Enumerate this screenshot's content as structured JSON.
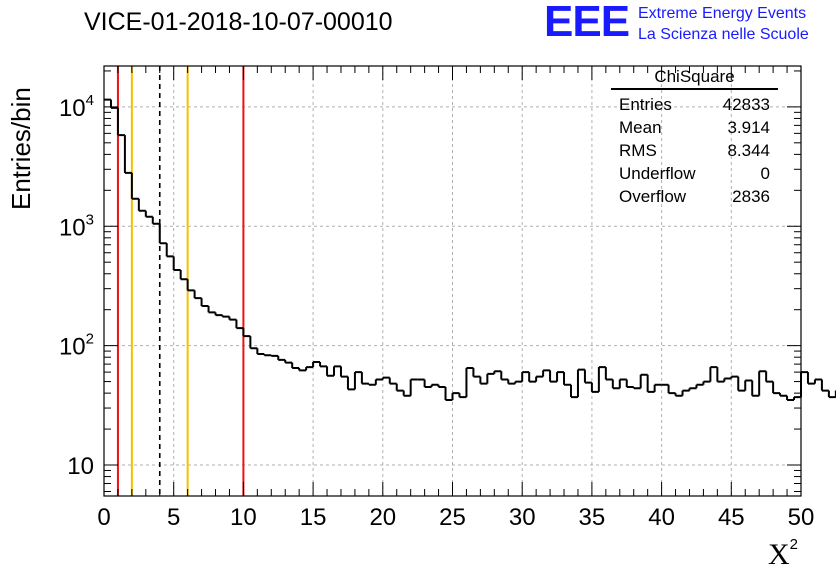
{
  "chart_data": {
    "type": "histogram",
    "title": "VICE-01-2018-10-07-00010",
    "xlabel": "X",
    "xlabel_superscript": "2",
    "ylabel": "Entries/bin",
    "xlim": [
      0,
      50
    ],
    "ylim": [
      5.5,
      22000
    ],
    "yscale": "log",
    "bin_width": 0.5,
    "x_ticks": [
      0,
      5,
      10,
      15,
      20,
      25,
      30,
      35,
      40,
      45,
      50
    ],
    "y_ticks": [
      {
        "value": 10,
        "base": "10",
        "exp": ""
      },
      {
        "value": 100,
        "base": "10",
        "exp": "2"
      },
      {
        "value": 1000,
        "base": "10",
        "exp": "3"
      },
      {
        "value": 10000,
        "base": "10",
        "exp": "4"
      }
    ],
    "grid": true,
    "bin_contents": [
      11500,
      9800,
      5800,
      2800,
      1700,
      1350,
      1200,
      1050,
      720,
      560,
      430,
      360,
      290,
      250,
      215,
      190,
      180,
      175,
      165,
      140,
      120,
      95,
      85,
      83,
      82,
      76,
      72,
      65,
      62,
      66,
      73,
      67,
      56,
      67,
      55,
      43,
      60,
      48,
      47,
      52,
      54,
      48,
      42,
      38,
      52,
      52,
      45,
      47,
      45,
      35,
      40,
      37,
      65,
      55,
      48,
      58,
      61,
      52,
      48,
      50,
      60,
      50,
      55,
      62,
      50,
      60,
      47,
      37,
      63,
      49,
      41,
      66,
      52,
      44,
      52,
      45,
      44,
      57,
      41,
      47,
      47,
      40,
      38,
      42,
      44,
      47,
      50,
      66,
      50,
      53,
      55,
      42,
      51,
      38,
      61,
      50,
      40,
      38,
      35,
      37,
      60,
      48,
      52,
      42,
      37,
      42,
      42,
      32,
      35,
      43,
      32,
      30,
      65,
      42,
      32,
      41,
      40,
      33,
      37,
      35,
      36,
      35,
      32,
      38,
      31,
      32,
      35,
      32,
      29,
      23,
      22,
      12,
      31,
      16,
      31,
      28,
      22,
      20,
      25,
      22
    ],
    "vertical_lines": [
      {
        "x": 1,
        "color": "#ee1111",
        "style": "solid"
      },
      {
        "x": 2,
        "color": "#f5c000",
        "style": "solid"
      },
      {
        "x": 4,
        "color": "#000000",
        "style": "dashed"
      },
      {
        "x": 6,
        "color": "#f5c000",
        "style": "solid"
      },
      {
        "x": 10,
        "color": "#ee1111",
        "style": "solid"
      }
    ],
    "stats": {
      "title": "ChiSquare",
      "rows": [
        {
          "label": "Entries",
          "value": "42833"
        },
        {
          "label": "Mean",
          "value": "3.914"
        },
        {
          "label": "RMS",
          "value": "8.344"
        },
        {
          "label": "Underflow",
          "value": "0"
        },
        {
          "label": "Overflow",
          "value": "2836"
        }
      ]
    }
  },
  "logo": {
    "mark": "EEE",
    "line1": "Extreme Energy Events",
    "line2": "La Scienza nelle Scuole",
    "color": "#1a1aff"
  }
}
